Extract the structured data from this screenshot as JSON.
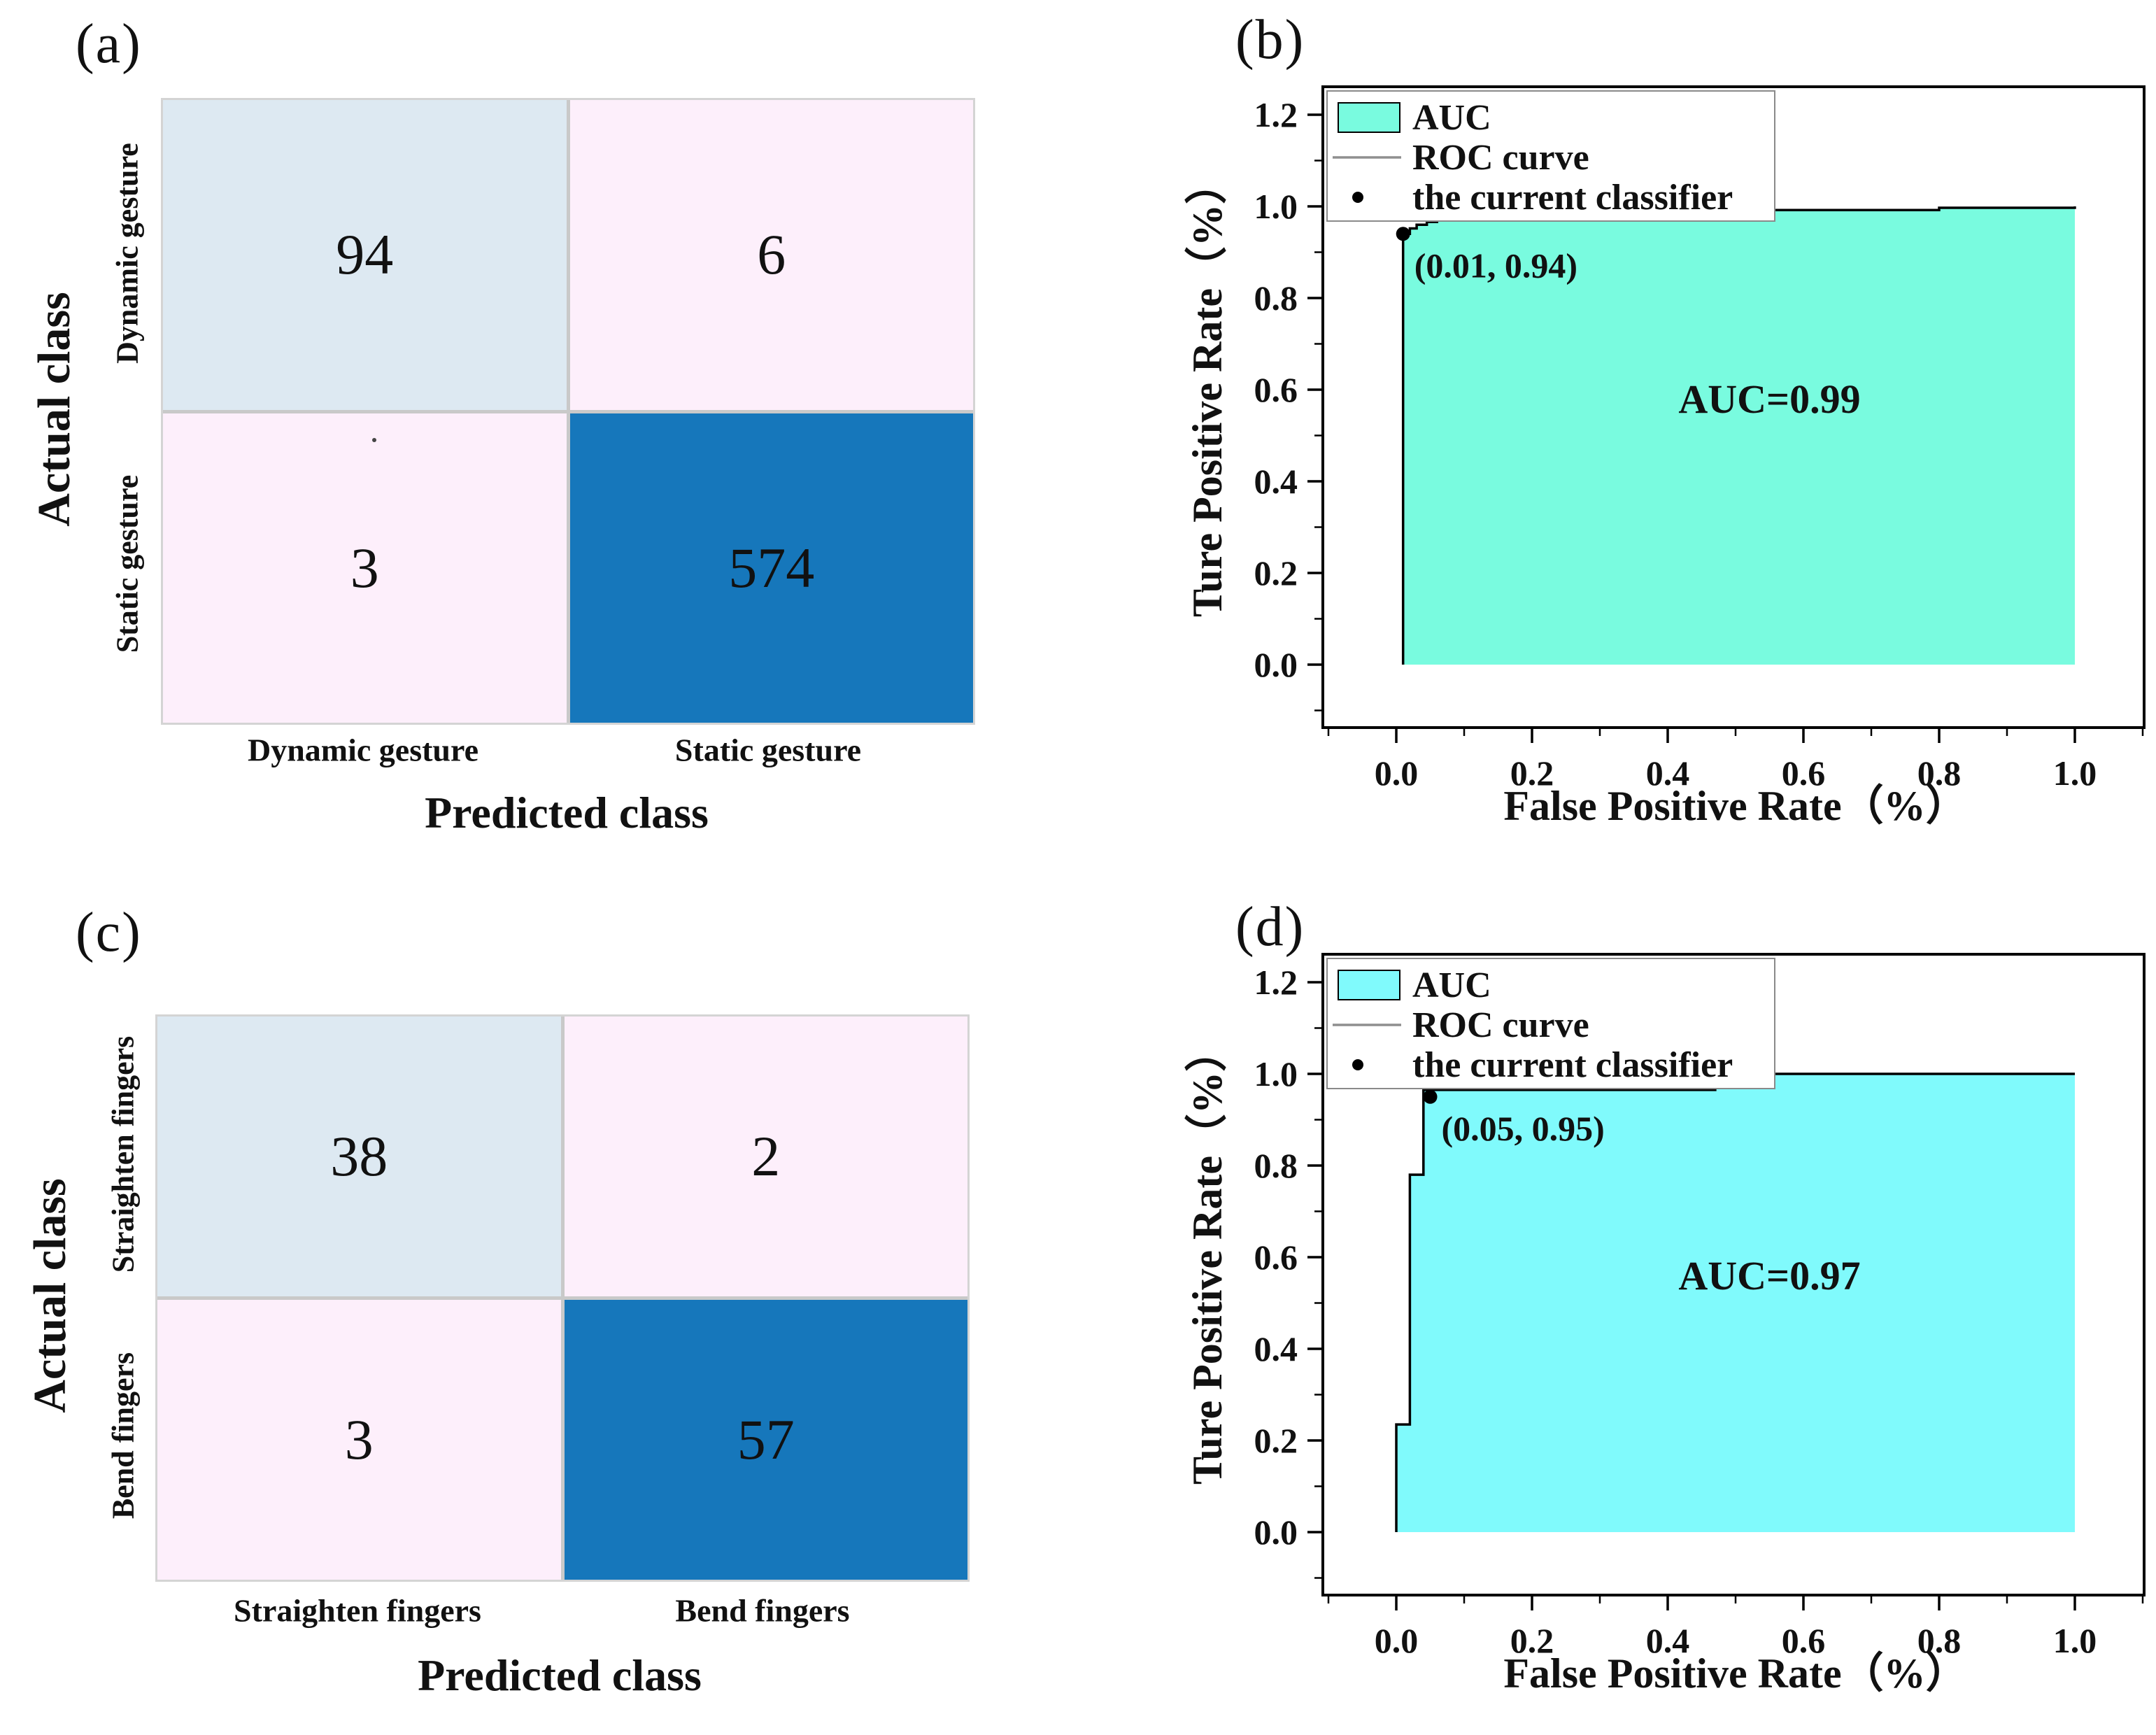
{
  "figure": {
    "background": "#ffffff",
    "text_color": "#111111",
    "grid_line_color": "#c9c9c9"
  },
  "chart_data": [
    {
      "panel_tag": "(a)",
      "type": "heatmap",
      "subtype": "confusion_matrix",
      "rows_axis_title": "Actual class",
      "cols_axis_title": "Predicted class",
      "row_labels": [
        "Dynamic gesture",
        "Static gesture"
      ],
      "col_labels": [
        "Dynamic gesture",
        "Static gesture"
      ],
      "values": [
        [
          94,
          6
        ],
        [
          3,
          574
        ]
      ],
      "cell_colors": [
        [
          "#dde9f2",
          "#fdeffb"
        ],
        [
          "#fdeffb",
          "#1677bb"
        ]
      ]
    },
    {
      "panel_tag": "(b)",
      "type": "area",
      "subtype": "roc_curve",
      "xlabel": "False Positive Rate（%）",
      "ylabel": "Ture Positive Rate（%）",
      "x_ticks": [
        "0.0",
        "0.2",
        "0.4",
        "0.6",
        "0.8",
        "1.0"
      ],
      "y_ticks": [
        "0.0",
        "0.2",
        "0.4",
        "0.6",
        "0.8",
        "1.0",
        "1.2"
      ],
      "xlim": [
        -0.11,
        1.11
      ],
      "ylim": [
        -0.14,
        1.27
      ],
      "legend": [
        {
          "label": "AUC",
          "marker": "area"
        },
        {
          "label": "ROC curve",
          "marker": "line"
        },
        {
          "label": "the current classifier",
          "marker": "dot"
        }
      ],
      "auc_annotation": "AUC=0.99",
      "auc_annotation_xy": [
        0.55,
        0.55
      ],
      "classifier_point": [
        0.01,
        0.94
      ],
      "classifier_annotation": "(0.01, 0.94)",
      "area_color": "#79fbdf",
      "curve_color": "#000000",
      "legend_line_color": "#8f8f8f",
      "roc_points": [
        [
          0.01,
          0.0
        ],
        [
          0.01,
          0.94
        ],
        [
          0.02,
          0.94
        ],
        [
          0.02,
          0.952
        ],
        [
          0.03,
          0.952
        ],
        [
          0.03,
          0.96
        ],
        [
          0.045,
          0.96
        ],
        [
          0.045,
          0.966
        ],
        [
          0.06,
          0.966
        ],
        [
          0.06,
          0.971
        ],
        [
          0.09,
          0.971
        ],
        [
          0.09,
          0.976
        ],
        [
          0.21,
          0.976
        ],
        [
          0.21,
          0.986
        ],
        [
          0.55,
          0.986
        ],
        [
          0.55,
          0.992
        ],
        [
          0.8,
          0.992
        ],
        [
          0.8,
          0.997
        ],
        [
          1.0,
          0.997
        ],
        [
          1.0,
          1.0
        ]
      ]
    },
    {
      "panel_tag": "(c)",
      "type": "heatmap",
      "subtype": "confusion_matrix",
      "rows_axis_title": "Actual class",
      "cols_axis_title": "Predicted class",
      "row_labels": [
        "Straighten fingers",
        "Bend fingers"
      ],
      "col_labels": [
        "Straighten fingers",
        "Bend fingers"
      ],
      "values": [
        [
          38,
          2
        ],
        [
          3,
          57
        ]
      ],
      "cell_colors": [
        [
          "#dde9f2",
          "#fdeffb"
        ],
        [
          "#fdeffb",
          "#1677bb"
        ]
      ]
    },
    {
      "panel_tag": "(d)",
      "type": "area",
      "subtype": "roc_curve",
      "xlabel": "False Positive Rate（%）",
      "ylabel": "Ture Positive Rate（%）",
      "x_ticks": [
        "0.0",
        "0.2",
        "0.4",
        "0.6",
        "0.8",
        "1.0"
      ],
      "y_ticks": [
        "0.0",
        "0.2",
        "0.4",
        "0.6",
        "0.8",
        "1.0",
        "1.2"
      ],
      "xlim": [
        -0.11,
        1.11
      ],
      "ylim": [
        -0.14,
        1.27
      ],
      "legend": [
        {
          "label": "AUC",
          "marker": "area"
        },
        {
          "label": "ROC curve",
          "marker": "line"
        },
        {
          "label": "the current classifier",
          "marker": "dot"
        }
      ],
      "auc_annotation": "AUC=0.97",
      "auc_annotation_xy": [
        0.55,
        0.53
      ],
      "classifier_point": [
        0.05,
        0.95
      ],
      "classifier_annotation": "(0.05, 0.95)",
      "area_color": "#80fafc",
      "curve_color": "#000000",
      "legend_line_color": "#8f8f8f",
      "roc_points": [
        [
          0.0,
          0.0
        ],
        [
          0.0,
          0.235
        ],
        [
          0.02,
          0.235
        ],
        [
          0.02,
          0.78
        ],
        [
          0.04,
          0.78
        ],
        [
          0.04,
          0.965
        ],
        [
          0.47,
          0.965
        ],
        [
          0.47,
          1.0
        ],
        [
          1.0,
          1.0
        ]
      ]
    }
  ]
}
